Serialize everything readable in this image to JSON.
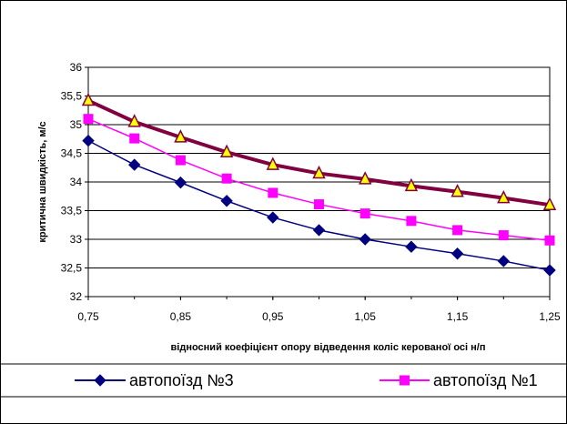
{
  "chart_data": {
    "type": "line",
    "xlabel": "відносний коефіцієнт опору відведення коліс керованої осі н/п",
    "ylabel": "критична швидкість, м/с",
    "xlim": [
      0.75,
      1.25
    ],
    "ylim": [
      32,
      36
    ],
    "x_ticks": [
      "0,75",
      "0,85",
      "0,95",
      "1,05",
      "1,15",
      "1,25"
    ],
    "y_ticks": [
      "32",
      "32,5",
      "33",
      "33,5",
      "34",
      "34,5",
      "35",
      "35,5",
      "36"
    ],
    "grid": "horizontal",
    "legend_position": "bottom",
    "x": [
      0.75,
      0.8,
      0.85,
      0.9,
      0.95,
      1.0,
      1.05,
      1.1,
      1.15,
      1.2,
      1.25
    ],
    "series": [
      {
        "name": "автопоїзд №3",
        "color": "#000080",
        "marker": "diamond",
        "values": [
          34.72,
          34.3,
          33.99,
          33.67,
          33.38,
          33.16,
          33.0,
          32.87,
          32.75,
          32.62,
          32.46
        ]
      },
      {
        "name": "автопоїзд №1",
        "color": "#FF00FF",
        "marker": "square",
        "values": [
          35.1,
          34.76,
          34.38,
          34.06,
          33.81,
          33.61,
          33.45,
          33.32,
          33.16,
          33.07,
          32.98
        ]
      },
      {
        "name": "",
        "color": "#800040",
        "marker": "triangle",
        "marker_fill": "#FFFF00",
        "values": [
          35.42,
          35.05,
          34.78,
          34.52,
          34.3,
          34.15,
          34.05,
          33.93,
          33.83,
          33.72,
          33.6
        ]
      }
    ]
  }
}
